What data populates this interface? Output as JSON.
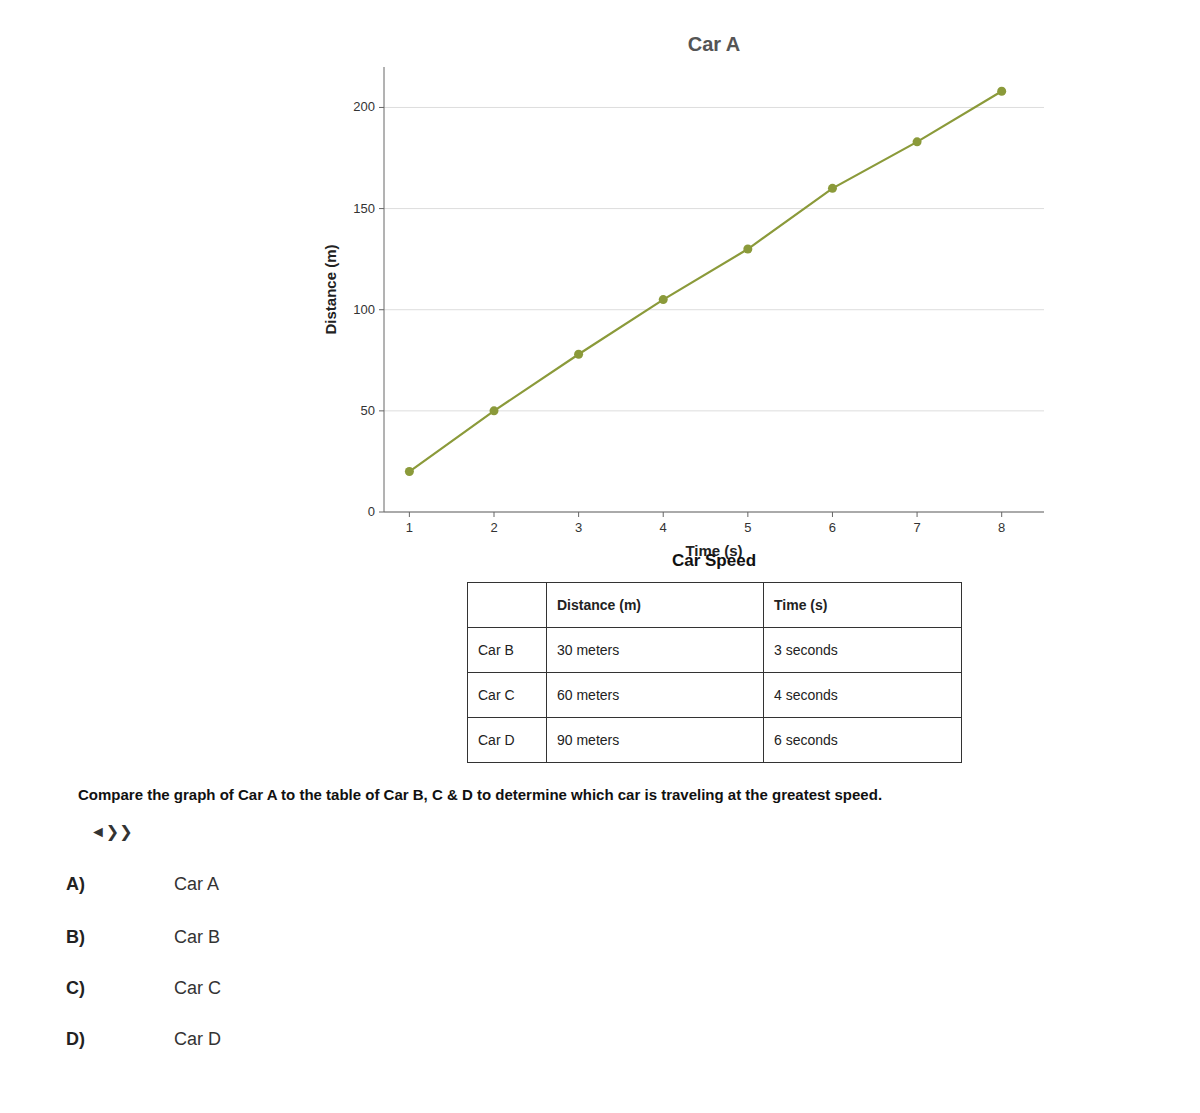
{
  "chart_data": [
    {
      "type": "line",
      "title": "Car A",
      "x_label": "Time (s)",
      "y_label": "Distance (m)",
      "x": [
        1,
        2,
        3,
        4,
        5,
        6,
        7,
        8
      ],
      "values": [
        20,
        50,
        78,
        105,
        130,
        160,
        183,
        208
      ],
      "color": "#8B9A3A",
      "marker": "circle",
      "xlim": [
        0.7,
        8.5
      ],
      "xticks": [
        1,
        2,
        3,
        4,
        5,
        6,
        7,
        8
      ],
      "ylim": [
        0,
        220
      ],
      "yticks": [
        0,
        50,
        100,
        150,
        200
      ],
      "grid": true
    },
    {
      "type": "table",
      "title": "Car Speed",
      "columns": [
        null,
        "Distance (m)",
        "Time (s)"
      ],
      "rows": [
        [
          "Car B",
          "30 meters",
          "3 seconds"
        ],
        [
          "Car C",
          "60 meters",
          "4 seconds"
        ],
        [
          "Car D",
          "90 meters",
          "6 seconds"
        ]
      ]
    }
  ],
  "question": "Compare the graph of Car A to the table of Car B, C & D to determine which car is traveling at the greatest speed.",
  "icon": "◄❯❯",
  "options": [
    {
      "letter": "A)",
      "text": "Car A"
    },
    {
      "letter": "B)",
      "text": "Car B"
    },
    {
      "letter": "C)",
      "text": "Car C"
    },
    {
      "letter": "D)",
      "text": "Car D"
    }
  ]
}
